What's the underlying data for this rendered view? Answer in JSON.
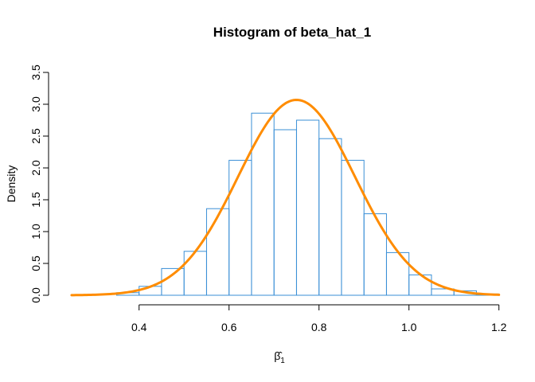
{
  "chart_data": {
    "type": "bar",
    "title": "Histogram of beta_hat_1",
    "xlabel": "β̂",
    "xlabel_subscript": "1",
    "ylabel": "Density",
    "xlim": [
      0.22,
      1.22
    ],
    "ylim": [
      0,
      3.5
    ],
    "x_ticks": [
      "0.4",
      "0.6",
      "0.8",
      "1.0",
      "1.2"
    ],
    "x_tick_values": [
      0.4,
      0.6,
      0.8,
      1.0,
      1.2
    ],
    "y_ticks": [
      "0.0",
      "0.5",
      "1.0",
      "1.5",
      "2.0",
      "2.5",
      "3.0",
      "3.5"
    ],
    "y_tick_values": [
      0.0,
      0.5,
      1.0,
      1.5,
      2.0,
      2.5,
      3.0,
      3.5
    ],
    "bin_edges": [
      0.35,
      0.4,
      0.45,
      0.5,
      0.55,
      0.6,
      0.65,
      0.7,
      0.75,
      0.8,
      0.85,
      0.9,
      0.95,
      1.0,
      1.05,
      1.1,
      1.15,
      1.2
    ],
    "values": [
      0.04,
      0.14,
      0.42,
      0.69,
      1.36,
      2.12,
      2.86,
      2.6,
      2.75,
      2.46,
      2.12,
      1.28,
      0.67,
      0.32,
      0.1,
      0.07,
      0.02
    ],
    "grid": false,
    "density_curve": {
      "mean": 0.75,
      "sd": 0.13,
      "x_range": [
        0.25,
        1.2
      ]
    },
    "colors": {
      "bars": "#3a8fd6",
      "curve": "#ff8c00"
    }
  }
}
